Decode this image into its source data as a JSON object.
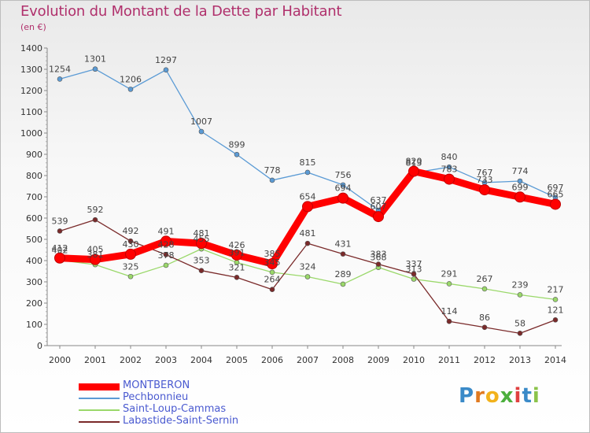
{
  "header": {
    "title": "Evolution du Montant de la Dette par Habitant",
    "subtitle": "(en €)"
  },
  "logo": {
    "letters": [
      "P",
      "r",
      "o",
      "x",
      "i",
      "t",
      "i"
    ]
  },
  "chart_data": {
    "type": "line",
    "title": "Evolution du Montant de la Dette par Habitant",
    "subtitle": "(en €)",
    "x": [
      "2000",
      "2001",
      "2002",
      "2003",
      "2004",
      "2005",
      "2006",
      "2007",
      "2008",
      "2009",
      "2010",
      "2011",
      "2012",
      "2013",
      "2014"
    ],
    "ylim": [
      0,
      1400
    ],
    "yticks": [
      0,
      100,
      200,
      300,
      400,
      500,
      600,
      700,
      800,
      900,
      1000,
      1100,
      1200,
      1300,
      1400
    ],
    "grid": false,
    "legend_position": "bottom-left",
    "series": [
      {
        "name": "MONTBERON",
        "color": "#ff0000",
        "values": [
          412,
          405,
          430,
          491,
          481,
          426,
          385,
          654,
          694,
          607,
          820,
          783,
          733,
          699,
          665
        ],
        "labels": [
          "412",
          "405",
          "430",
          "491",
          "481",
          "426",
          "385",
          "654",
          "694",
          "607",
          "820",
          "783",
          "733",
          "699",
          "665"
        ]
      },
      {
        "name": "Pechbonnieu",
        "color": "#5b9bd5",
        "values": [
          1254,
          1301,
          1206,
          1297,
          1007,
          899,
          778,
          815,
          756,
          637,
          813,
          840,
          767,
          774,
          697
        ],
        "labels": [
          "1254",
          "1301",
          "1206",
          "1297",
          "1007",
          "899",
          "778",
          "815",
          "756",
          "637",
          "813",
          "840",
          "767",
          "774",
          "697"
        ]
      },
      {
        "name": "Saint-Loup-Cammas",
        "color": "#9ad86a",
        "values": [
          402,
          381,
          325,
          378,
          455,
          391,
          345,
          324,
          289,
          368,
          313,
          291,
          267,
          239,
          217
        ],
        "labels": [
          "402",
          "381",
          "325",
          "378",
          "455",
          "391",
          "345",
          "324",
          "289",
          "368",
          "313",
          "291",
          "267",
          "239",
          "217"
        ]
      },
      {
        "name": "Labastide-Saint-Sernin",
        "color": "#7a2a2a",
        "values": [
          539,
          592,
          492,
          428,
          353,
          321,
          264,
          481,
          431,
          383,
          337,
          114,
          86,
          58,
          121
        ],
        "labels": [
          "539",
          "592",
          "492",
          "428",
          "353",
          "321",
          "264",
          "481",
          "431",
          "383",
          "337",
          "114",
          "86",
          "58",
          "121"
        ]
      }
    ]
  }
}
